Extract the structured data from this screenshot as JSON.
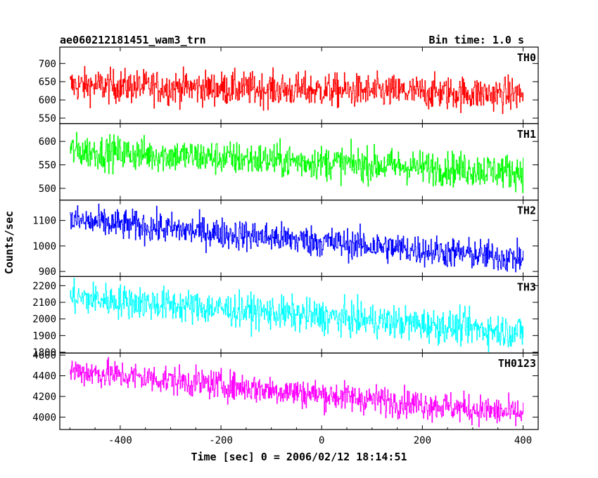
{
  "chart_data": {
    "type": "line",
    "title": "ae060212181451_wam3_trn",
    "subtitle": "Bin time: 1.0 s",
    "xlabel": "Time [sec] 0 = 2006/02/12 18:14:51",
    "ylabel": "Counts/sec",
    "xlim": [
      -520,
      430
    ],
    "xticks": [
      -400,
      -200,
      0,
      200,
      400
    ],
    "x_range": [
      -500,
      400
    ],
    "x_step": 1,
    "grid": false,
    "panels": [
      {
        "name": "TH0",
        "color": "#ff0000",
        "ylim": [
          535,
          745
        ],
        "yticks": [
          550,
          600,
          650,
          700
        ],
        "start": 640,
        "end": 615,
        "noise": 23
      },
      {
        "name": "TH1",
        "color": "#00ff00",
        "ylim": [
          475,
          638
        ],
        "yticks": [
          500,
          550,
          600
        ],
        "start": 580,
        "end": 535,
        "noise": 18
      },
      {
        "name": "TH2",
        "color": "#0000ff",
        "ylim": [
          880,
          1180
        ],
        "yticks": [
          900,
          1000,
          1100
        ],
        "start": 1100,
        "end": 950,
        "noise": 30
      },
      {
        "name": "TH3",
        "color": "#00ffff",
        "ylim": [
          1795,
          2255
        ],
        "yticks": [
          1800,
          1900,
          2000,
          2100,
          2200
        ],
        "start": 2130,
        "end": 1920,
        "noise": 50
      },
      {
        "name": "TH0123",
        "color": "#ff00ff",
        "ylim": [
          3880,
          4620
        ],
        "yticks": [
          4000,
          4200,
          4400,
          4600
        ],
        "start": 4450,
        "end": 4030,
        "noise": 70
      }
    ]
  }
}
